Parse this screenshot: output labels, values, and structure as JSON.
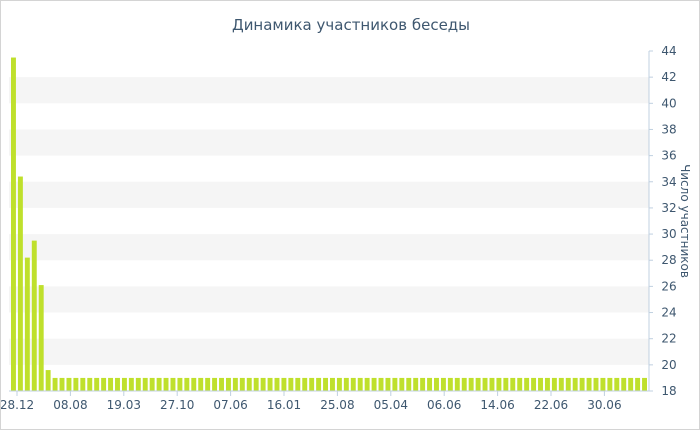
{
  "chart_data": {
    "type": "bar",
    "title": "Динамика участников беседы",
    "ylabel": "Число участников",
    "xlabel": "",
    "ylim": [
      18,
      44
    ],
    "yticks": [
      18,
      20,
      22,
      24,
      26,
      28,
      30,
      32,
      34,
      36,
      38,
      40,
      42,
      44
    ],
    "y_axis_side": "right",
    "grid": "alternating horizontal bands",
    "x_tick_labels": [
      "28.12",
      "08.08",
      "19.03",
      "27.10",
      "07.06",
      "16.01",
      "25.08",
      "05.04",
      "06.06",
      "14.06",
      "22.06",
      "30.06"
    ],
    "bar_color": "#bfe02c",
    "values": [
      43.5,
      34.4,
      28.2,
      29.5,
      26.1,
      19.6,
      19.0,
      19.0,
      19.0,
      19.0,
      19.0,
      19.0,
      19.0,
      19.0,
      19.0,
      19.0,
      19.0,
      19.0,
      19.0,
      19.0,
      19.0,
      19.0,
      19.0,
      19.0,
      19.0,
      19.0,
      19.0,
      19.0,
      19.0,
      19.0,
      19.0,
      19.0,
      19.0,
      19.0,
      19.0,
      19.0,
      19.0,
      19.0,
      19.0,
      19.0,
      19.0,
      19.0,
      19.0,
      19.0,
      19.0,
      19.0,
      19.0,
      19.0,
      19.0,
      19.0,
      19.0,
      19.0,
      19.0,
      19.0,
      19.0,
      19.0,
      19.0,
      19.0,
      19.0,
      19.0,
      19.0,
      19.0,
      19.0,
      19.0,
      19.0,
      19.0,
      19.0,
      19.0,
      19.0,
      19.0,
      19.0,
      19.0,
      19.0,
      19.0,
      19.0,
      19.0,
      19.0,
      19.0,
      19.0,
      19.0,
      19.0,
      19.0,
      19.0,
      19.0,
      19.0,
      19.0,
      19.0,
      19.0,
      19.0,
      19.0,
      19.0,
      19.0
    ]
  }
}
